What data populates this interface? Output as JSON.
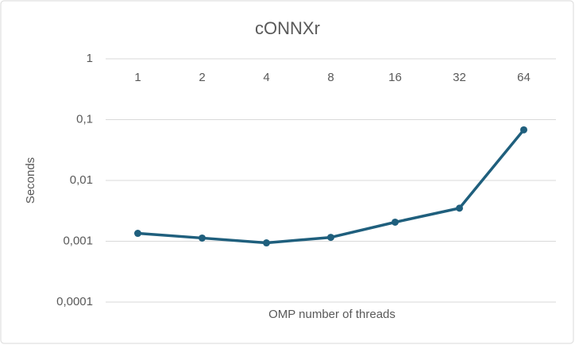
{
  "chart_data": {
    "type": "line",
    "title": "cONNXr",
    "x_label": "OMP number of threads",
    "y_label": "Seconds",
    "categories": [
      "1",
      "2",
      "4",
      "8",
      "16",
      "32",
      "64"
    ],
    "series": [
      {
        "name": "cONNXr",
        "color": "#1f5f7d",
        "values": [
          0.00135,
          0.00113,
          0.00094,
          0.00116,
          0.00206,
          0.0035,
          0.068
        ]
      }
    ],
    "y_scale": "log",
    "ylim": [
      0.0001,
      1
    ],
    "yticks": [
      {
        "value": 0.0001,
        "label": "0,0001"
      },
      {
        "value": 0.001,
        "label": "0,001"
      },
      {
        "value": 0.01,
        "label": "0,01"
      },
      {
        "value": 0.1,
        "label": "0,1"
      },
      1
    ],
    "grid": true
  }
}
